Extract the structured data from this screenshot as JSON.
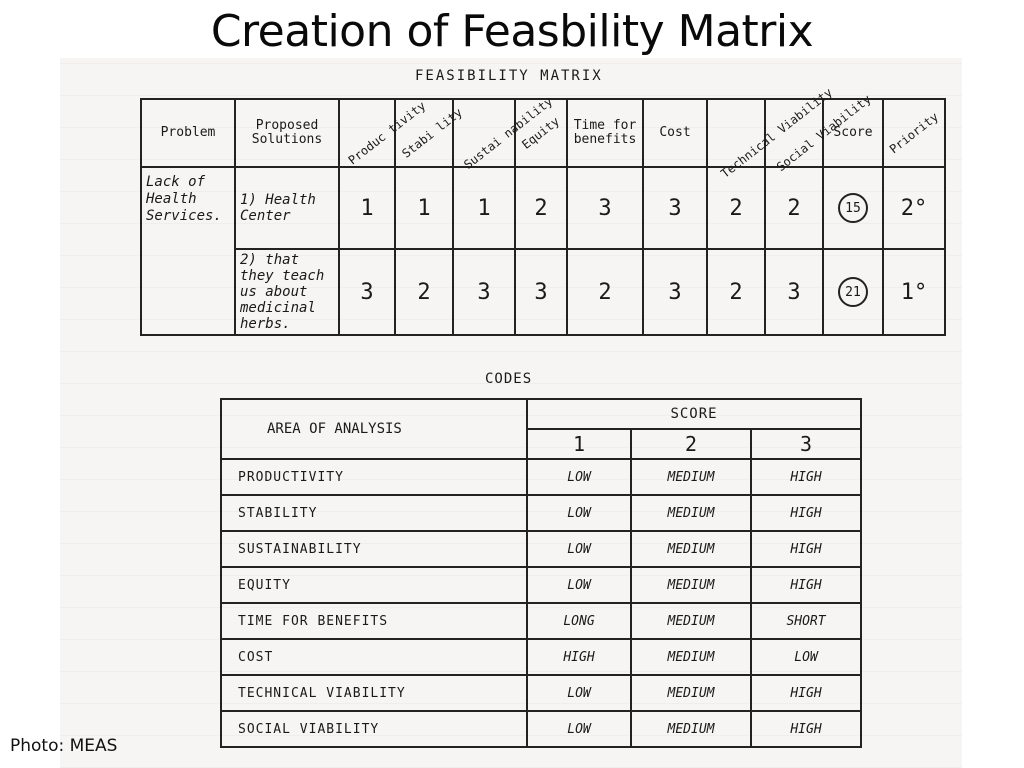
{
  "slide": {
    "title": "Creation of Feasbility Matrix",
    "caption": "Photo: MEAS"
  },
  "matrix": {
    "heading": "FEASIBILITY MATRIX",
    "headers": {
      "problem": "Problem",
      "solutions": "Proposed Solutions",
      "criteria": [
        "Produc tivity",
        "Stabi lity",
        "Sustai nability",
        "Equity",
        "Time for benefits",
        "Cost",
        "Technical Viability",
        "Social Viability"
      ],
      "score": "Score",
      "priority": "Priority"
    },
    "problem": "Lack of Health Services.",
    "rows": [
      {
        "solution": "1) Health Center",
        "values": [
          "1",
          "1",
          "1",
          "2",
          "3",
          "3",
          "2",
          "2"
        ],
        "score": "15",
        "priority": "2°"
      },
      {
        "solution": "2) that they teach us about medicinal herbs.",
        "values": [
          "3",
          "2",
          "3",
          "3",
          "2",
          "3",
          "2",
          "3"
        ],
        "score": "21",
        "priority": "1°"
      }
    ]
  },
  "codes": {
    "heading": "CODES",
    "area_header": "AREA OF ANALYSIS",
    "score_header": "SCORE",
    "score_levels": [
      "1",
      "2",
      "3"
    ],
    "rows": [
      {
        "area": "PRODUCTIVITY",
        "s1": "LOW",
        "s2": "MEDIUM",
        "s3": "HIGH"
      },
      {
        "area": "STABILITY",
        "s1": "LOW",
        "s2": "MEDIUM",
        "s3": "HIGH"
      },
      {
        "area": "SUSTAINABILITY",
        "s1": "LOW",
        "s2": "MEDIUM",
        "s3": "HIGH"
      },
      {
        "area": "EQUITY",
        "s1": "LOW",
        "s2": "MEDIUM",
        "s3": "HIGH"
      },
      {
        "area": "TIME FOR BENEFITS",
        "s1": "LONG",
        "s2": "MEDIUM",
        "s3": "SHORT"
      },
      {
        "area": "COST",
        "s1": "HIGH",
        "s2": "MEDIUM",
        "s3": "LOW"
      },
      {
        "area": "TECHNICAL VIABILITY",
        "s1": "LOW",
        "s2": "MEDIUM",
        "s3": "HIGH"
      },
      {
        "area": "SOCIAL VIABILITY",
        "s1": "LOW",
        "s2": "MEDIUM",
        "s3": "HIGH"
      }
    ]
  }
}
